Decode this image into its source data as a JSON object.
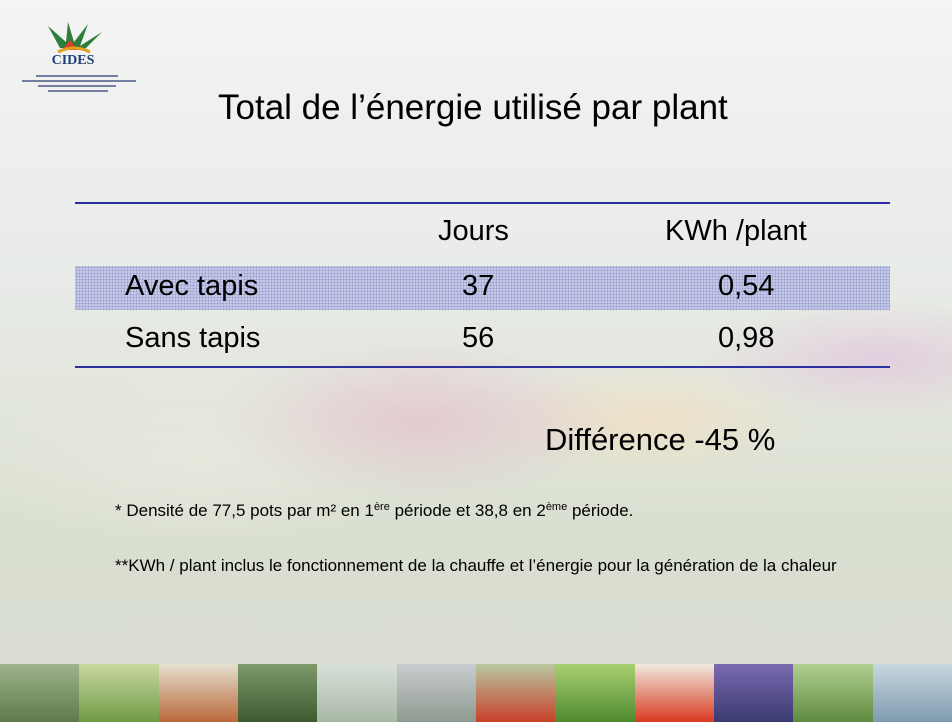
{
  "logo": {
    "name": "CIDES"
  },
  "title": "Total de l’énergie utilisé par plant",
  "table": {
    "headers": [
      "Jours",
      "KWh /plant"
    ],
    "rows": [
      {
        "label": "Avec tapis",
        "values": [
          "37",
          "0,54"
        ]
      },
      {
        "label": "Sans tapis",
        "values": [
          "56",
          "0,98"
        ]
      }
    ]
  },
  "difference": "Différence -45 %",
  "notes": [
    {
      "parts": [
        {
          "text": "* Densité de 77,5 pots par m² en 1"
        },
        {
          "text": "ère",
          "sup": true
        },
        {
          "text": " période et 38,8 en 2"
        },
        {
          "text": "ème",
          "sup": true
        },
        {
          "text": " période."
        }
      ]
    },
    {
      "parts": [
        {
          "text": "**KWh / plant inclus le fonctionnement de la chauffe et l’énergie pour la génération de la chaleur"
        }
      ]
    }
  ]
}
